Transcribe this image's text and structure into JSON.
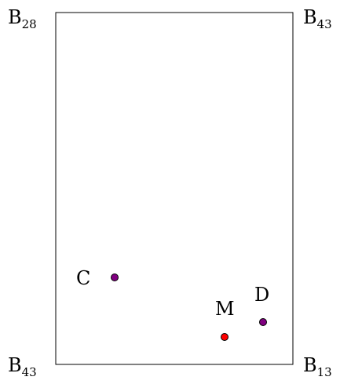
{
  "corners": {
    "top_left": {
      "base": "B",
      "subscript": "28"
    },
    "top_right": {
      "base": "B",
      "subscript": "43"
    },
    "bottom_left": {
      "base": "B",
      "subscript": "43"
    },
    "bottom_right": {
      "base": "B",
      "subscript": "13"
    }
  },
  "points": [
    {
      "label": "C",
      "color": "#800080"
    },
    {
      "label": "M",
      "color": "#ff0000"
    },
    {
      "label": "D",
      "color": "#800080"
    }
  ]
}
